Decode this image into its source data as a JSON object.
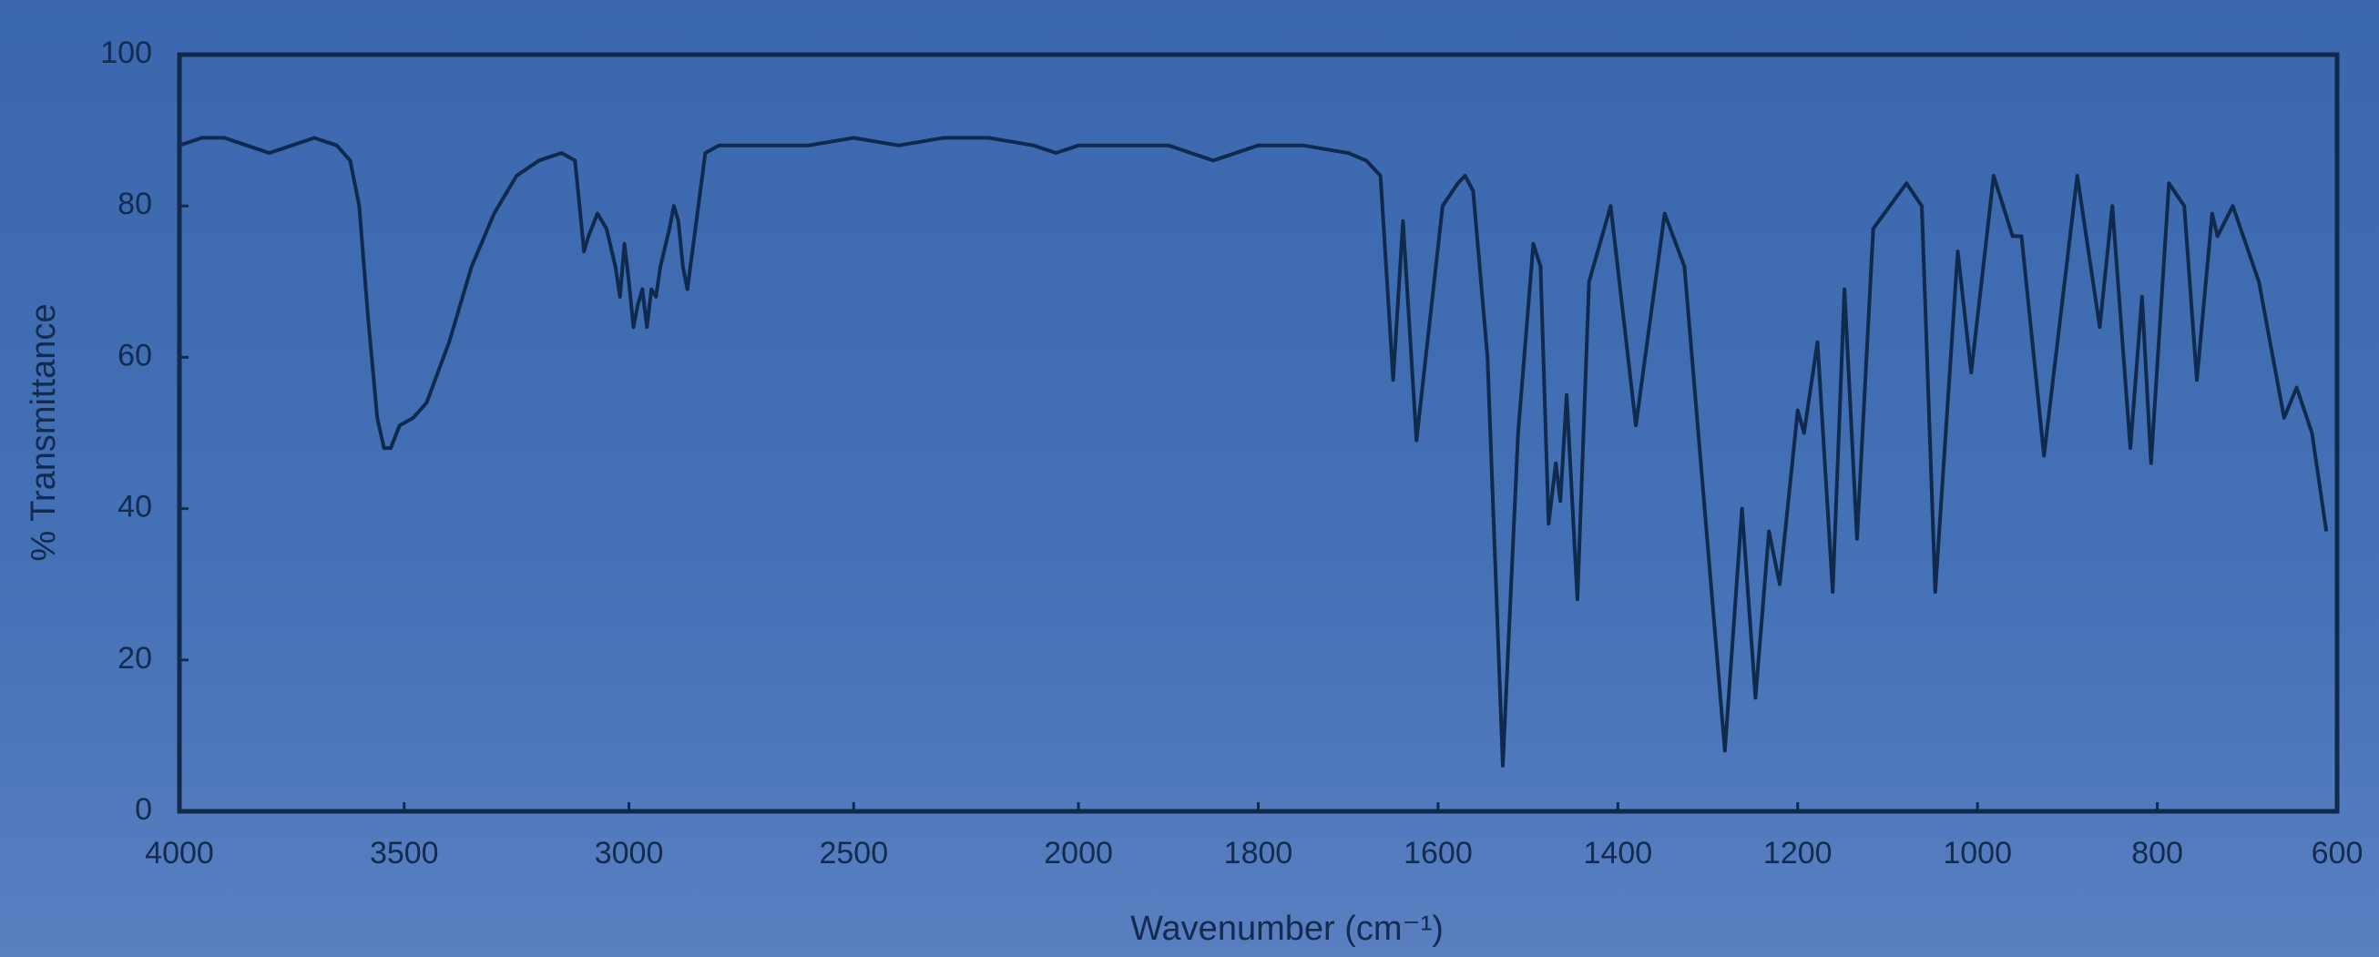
{
  "chart_data": {
    "type": "line",
    "xlabel": "Wavenumber (cm⁻¹)",
    "ylabel": "% Transmittance",
    "xlim": [
      4000,
      600
    ],
    "ylim": [
      0,
      100
    ],
    "xticks": [
      4000,
      3500,
      3000,
      2500,
      2000,
      1800,
      1600,
      1400,
      1200,
      1000,
      800,
      600
    ],
    "yticks": [
      0,
      20,
      40,
      60,
      80,
      100
    ],
    "xscale_change_at": 2000,
    "xscale_factor": 2,
    "grid": false,
    "color": "#0f2a4d",
    "x": [
      4000,
      3950,
      3900,
      3850,
      3800,
      3750,
      3700,
      3650,
      3620,
      3600,
      3580,
      3560,
      3545,
      3530,
      3510,
      3480,
      3450,
      3400,
      3350,
      3300,
      3250,
      3200,
      3150,
      3120,
      3110,
      3100,
      3090,
      3070,
      3050,
      3030,
      3020,
      3010,
      3000,
      2990,
      2980,
      2970,
      2960,
      2950,
      2940,
      2930,
      2910,
      2900,
      2890,
      2880,
      2870,
      2850,
      2830,
      2800,
      2700,
      2600,
      2500,
      2400,
      2300,
      2200,
      2100,
      2050,
      2000,
      1950,
      1900,
      1850,
      1800,
      1750,
      1700,
      1680,
      1664,
      1650,
      1639,
      1624,
      1595,
      1578,
      1570,
      1561,
      1545,
      1528,
      1511,
      1494,
      1486,
      1477,
      1469,
      1464,
      1457,
      1445,
      1432,
      1408,
      1380,
      1348,
      1326,
      1281,
      1262,
      1247,
      1232,
      1220,
      1200,
      1193,
      1178,
      1161,
      1148,
      1134,
      1116,
      1079,
      1062,
      1047,
      1022,
      1007,
      982,
      961,
      951,
      926,
      889,
      864,
      850,
      830,
      817,
      807,
      787,
      770,
      756,
      739,
      733,
      716,
      687,
      659,
      645,
      628,
      612
    ],
    "values": [
      88,
      89,
      89,
      88,
      87,
      88,
      89,
      88,
      86,
      80,
      65,
      52,
      48,
      48,
      51,
      52,
      54,
      62,
      72,
      79,
      84,
      86,
      87,
      86,
      80,
      74,
      76,
      79,
      77,
      72,
      68,
      75,
      70,
      64,
      67,
      69,
      64,
      69,
      68,
      72,
      77,
      80,
      78,
      72,
      69,
      78,
      87,
      88,
      88,
      88,
      89,
      88,
      89,
      89,
      88,
      87,
      88,
      88,
      88,
      86,
      88,
      88,
      87,
      86,
      84,
      57,
      78,
      49,
      80,
      83,
      84,
      82,
      60,
      6,
      50,
      75,
      72,
      38,
      46,
      41,
      55,
      28,
      70,
      80,
      51,
      79,
      72,
      8,
      40,
      15,
      37,
      30,
      53,
      50,
      62,
      29,
      69,
      36,
      77,
      83,
      80,
      29,
      74,
      58,
      84,
      76,
      76,
      47,
      84,
      64,
      80,
      48,
      68,
      46,
      83,
      80,
      57,
      79,
      76,
      80,
      70,
      52,
      56,
      50,
      37
    ]
  }
}
